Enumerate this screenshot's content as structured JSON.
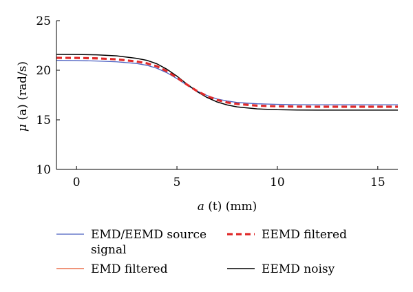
{
  "chart_data": {
    "type": "line",
    "xlabel_var": "a",
    "xlabel_arg": " (t)",
    "xlabel_unit": " (mm)",
    "ylabel_var": "μ",
    "ylabel_arg": " (a)",
    "ylabel_unit": " (rad/s)",
    "xlim": [
      -1,
      16
    ],
    "ylim": [
      10,
      25
    ],
    "xticks": [
      0,
      5,
      10,
      15
    ],
    "yticks": [
      10,
      15,
      20,
      25
    ],
    "grid": false,
    "legend_position": "bottom",
    "series": [
      {
        "name": "EMD/EEMD source signal",
        "name_line1": "EMD/EEMD source",
        "name_line2": "signal",
        "color": "#4a5fc1",
        "style": "solid",
        "x": [
          -1,
          0,
          1,
          2,
          3,
          3.5,
          4,
          4.5,
          5,
          5.5,
          6,
          6.5,
          7,
          7.5,
          8,
          9,
          10,
          11,
          12,
          13,
          14,
          15,
          16
        ],
        "y": [
          21.0,
          20.98,
          20.93,
          20.85,
          20.68,
          20.5,
          20.2,
          19.75,
          19.15,
          18.5,
          17.9,
          17.45,
          17.1,
          16.9,
          16.75,
          16.62,
          16.56,
          16.53,
          16.52,
          16.52,
          16.52,
          16.52,
          16.52
        ]
      },
      {
        "name": "EEMD filtered",
        "color": "#e02a2a",
        "style": "dashed",
        "x": [
          -1,
          0,
          1,
          2,
          3,
          3.5,
          4,
          4.5,
          5,
          5.5,
          6,
          6.5,
          7,
          7.5,
          8,
          9,
          10,
          11,
          12,
          13,
          14,
          15,
          16
        ],
        "y": [
          21.25,
          21.24,
          21.2,
          21.1,
          20.88,
          20.7,
          20.4,
          19.9,
          19.25,
          18.55,
          17.9,
          17.4,
          17.0,
          16.75,
          16.6,
          16.43,
          16.36,
          16.33,
          16.32,
          16.32,
          16.32,
          16.32,
          16.32
        ]
      },
      {
        "name": "EMD filtered",
        "color": "#e8542a",
        "style": "solid",
        "x": [],
        "y": []
      },
      {
        "name": "EEMD noisy",
        "color": "#000000",
        "style": "solid",
        "x": [
          -1,
          0,
          1,
          2,
          3,
          3.5,
          4,
          4.5,
          5,
          5.5,
          6,
          6.5,
          7,
          7.5,
          8,
          9,
          10,
          11,
          12,
          13,
          14,
          15,
          16
        ],
        "y": [
          21.6,
          21.59,
          21.55,
          21.45,
          21.2,
          21.0,
          20.65,
          20.1,
          19.4,
          18.6,
          17.85,
          17.25,
          16.8,
          16.5,
          16.3,
          16.1,
          16.02,
          15.99,
          15.98,
          15.98,
          15.98,
          15.98,
          15.98
        ]
      }
    ]
  }
}
